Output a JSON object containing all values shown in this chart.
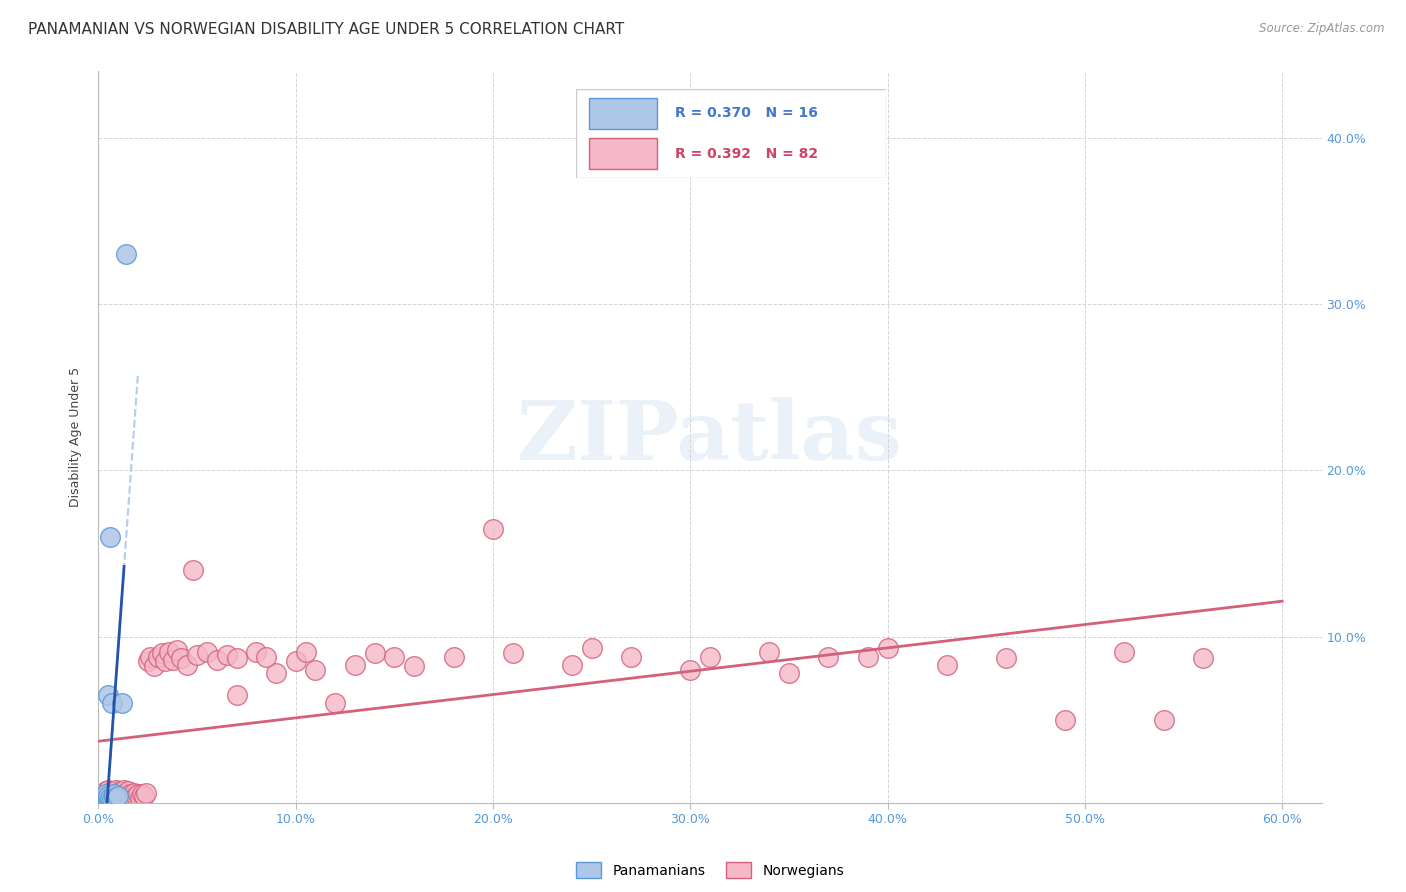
{
  "title": "PANAMANIAN VS NORWEGIAN DISABILITY AGE UNDER 5 CORRELATION CHART",
  "source": "Source: ZipAtlas.com",
  "ylabel": "Disability Age Under 5",
  "watermark": "ZIPatlas",
  "xlim": [
    0.0,
    0.62
  ],
  "ylim": [
    0.0,
    0.44
  ],
  "xticks": [
    0.0,
    0.1,
    0.2,
    0.3,
    0.4,
    0.5,
    0.6
  ],
  "yticks": [
    0.0,
    0.1,
    0.2,
    0.3,
    0.4
  ],
  "xticklabels": [
    "0.0%",
    "10.0%",
    "20.0%",
    "30.0%",
    "40.0%",
    "50.0%",
    "60.0%"
  ],
  "yticklabels_right": [
    "",
    "10.0%",
    "20.0%",
    "30.0%",
    "40.0%"
  ],
  "panamanian_color": "#aec6e8",
  "panamanian_edge": "#5b9bd5",
  "norwegian_color": "#f4b8c8",
  "norwegian_edge": "#d4607a",
  "trend_pan_color": "#2255aa",
  "trend_pan_dash_color": "#aec6e8",
  "trend_nor_color": "#d4607a",
  "legend_pan_R": "R = 0.370",
  "legend_pan_N": "N = 16",
  "legend_nor_R": "R = 0.392",
  "legend_nor_N": "N = 82",
  "pan_scatter_x": [
    0.003,
    0.004,
    0.004,
    0.005,
    0.005,
    0.005,
    0.006,
    0.006,
    0.007,
    0.007,
    0.008,
    0.008,
    0.009,
    0.01,
    0.012,
    0.014
  ],
  "pan_scatter_y": [
    0.002,
    0.003,
    0.005,
    0.002,
    0.004,
    0.065,
    0.003,
    0.16,
    0.002,
    0.06,
    0.003,
    0.005,
    0.003,
    0.004,
    0.06,
    0.33
  ],
  "nor_scatter_x": [
    0.003,
    0.003,
    0.004,
    0.004,
    0.005,
    0.005,
    0.005,
    0.006,
    0.006,
    0.007,
    0.007,
    0.008,
    0.008,
    0.009,
    0.009,
    0.01,
    0.01,
    0.011,
    0.011,
    0.012,
    0.013,
    0.013,
    0.014,
    0.015,
    0.015,
    0.016,
    0.017,
    0.018,
    0.019,
    0.02,
    0.021,
    0.022,
    0.023,
    0.024,
    0.025,
    0.026,
    0.028,
    0.03,
    0.032,
    0.034,
    0.036,
    0.038,
    0.04,
    0.042,
    0.045,
    0.048,
    0.05,
    0.055,
    0.06,
    0.065,
    0.07,
    0.08,
    0.09,
    0.1,
    0.11,
    0.12,
    0.14,
    0.16,
    0.18,
    0.21,
    0.24,
    0.27,
    0.3,
    0.34,
    0.37,
    0.4,
    0.43,
    0.46,
    0.49,
    0.52,
    0.54,
    0.56,
    0.39,
    0.35,
    0.31,
    0.25,
    0.2,
    0.15,
    0.13,
    0.105,
    0.085,
    0.07
  ],
  "nor_scatter_y": [
    0.003,
    0.005,
    0.002,
    0.007,
    0.001,
    0.004,
    0.008,
    0.002,
    0.006,
    0.003,
    0.007,
    0.002,
    0.005,
    0.003,
    0.008,
    0.002,
    0.006,
    0.003,
    0.007,
    0.004,
    0.006,
    0.008,
    0.003,
    0.007,
    0.004,
    0.005,
    0.003,
    0.006,
    0.004,
    0.005,
    0.003,
    0.005,
    0.004,
    0.006,
    0.085,
    0.088,
    0.082,
    0.088,
    0.09,
    0.085,
    0.091,
    0.086,
    0.092,
    0.087,
    0.083,
    0.14,
    0.089,
    0.091,
    0.086,
    0.089,
    0.065,
    0.091,
    0.078,
    0.085,
    0.08,
    0.06,
    0.09,
    0.082,
    0.088,
    0.09,
    0.083,
    0.088,
    0.08,
    0.091,
    0.088,
    0.093,
    0.083,
    0.087,
    0.05,
    0.091,
    0.05,
    0.087,
    0.088,
    0.078,
    0.088,
    0.093,
    0.165,
    0.088,
    0.083,
    0.091,
    0.088,
    0.087
  ],
  "background_color": "#ffffff",
  "grid_color": "#d0d0d0",
  "title_fontsize": 11,
  "axis_tick_fontsize": 9,
  "ylabel_fontsize": 9
}
